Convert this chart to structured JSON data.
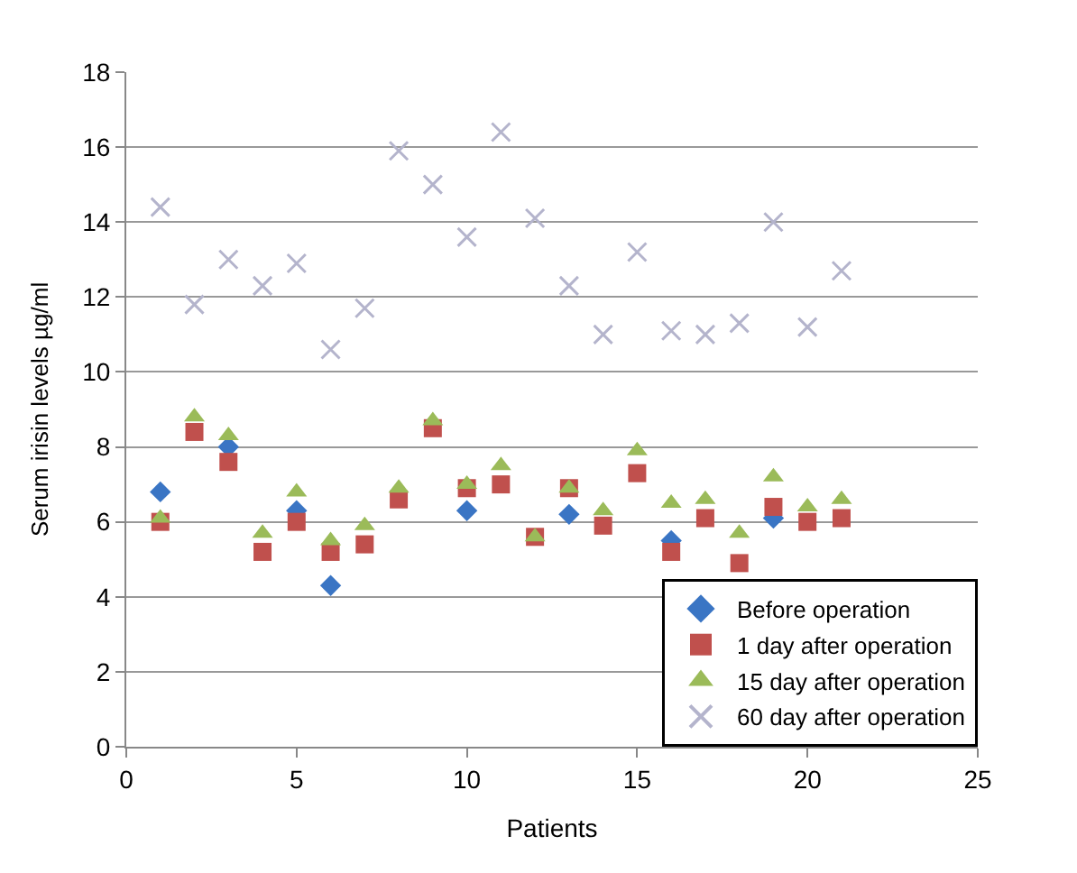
{
  "chart_data": {
    "type": "scatter",
    "xlabel": "Patients",
    "ylabel": "Serum irisin levels µg/ml",
    "x": [
      1,
      2,
      3,
      4,
      5,
      6,
      7,
      8,
      9,
      10,
      11,
      12,
      13,
      14,
      15,
      16,
      17,
      18,
      19,
      20,
      21
    ],
    "xlim": [
      0,
      25
    ],
    "xticks": [
      0,
      5,
      10,
      15,
      20,
      25
    ],
    "ylim": [
      0,
      18
    ],
    "yticks": [
      0,
      2,
      4,
      6,
      8,
      10,
      12,
      14,
      16,
      18
    ],
    "grid": "y",
    "legend": "bottom right",
    "series": [
      {
        "name": "Before operation",
        "color": "#3a75c4",
        "marker": "diamond",
        "values": [
          6.8,
          null,
          8.0,
          null,
          6.3,
          4.3,
          null,
          null,
          null,
          6.3,
          null,
          null,
          6.2,
          null,
          null,
          5.5,
          null,
          null,
          6.1,
          null,
          null
        ]
      },
      {
        "name": "1 day after operation",
        "color": "#c0504d",
        "marker": "square",
        "values": [
          6.0,
          8.4,
          7.6,
          5.2,
          6.0,
          5.2,
          5.4,
          6.6,
          8.5,
          6.9,
          7.0,
          5.6,
          6.9,
          5.9,
          7.3,
          5.2,
          6.1,
          4.9,
          6.4,
          6.0,
          6.1
        ]
      },
      {
        "name": "15 day after operation",
        "color": "#9bbb59",
        "marker": "triangle",
        "values": [
          6.1,
          8.8,
          8.3,
          5.7,
          6.8,
          5.5,
          5.9,
          6.9,
          8.7,
          7.0,
          7.5,
          5.6,
          6.9,
          6.3,
          7.9,
          6.5,
          6.6,
          5.7,
          7.2,
          6.4,
          6.6
        ]
      },
      {
        "name": "60 day after operation",
        "color": "#b4b4cc",
        "marker": "cross",
        "values": [
          14.4,
          11.8,
          13.0,
          12.3,
          12.9,
          10.6,
          11.7,
          15.9,
          15.0,
          13.6,
          16.4,
          14.1,
          12.3,
          11.0,
          13.2,
          11.1,
          11.0,
          11.3,
          14.0,
          11.2,
          12.7
        ]
      }
    ]
  }
}
